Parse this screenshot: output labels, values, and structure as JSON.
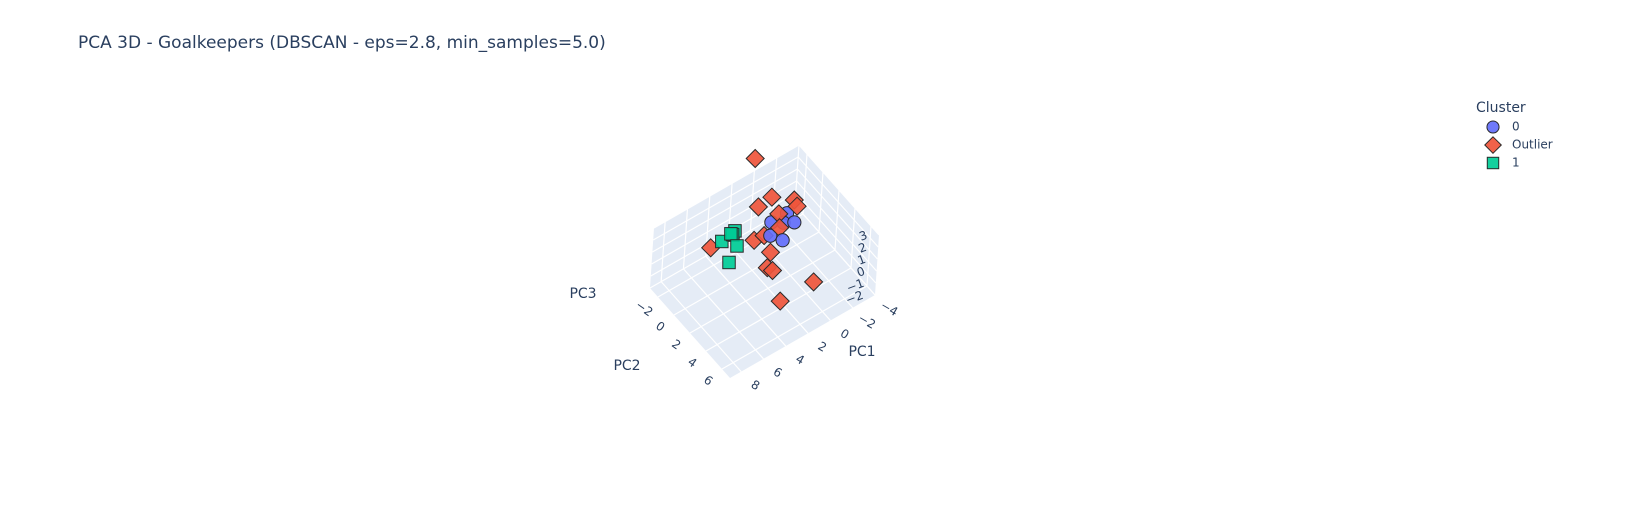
{
  "chart_data": {
    "type": "scatter",
    "projection": "3d",
    "title": "PCA 3D - Goalkeepers (DBSCAN - eps=2.8, min_samples=5.0)",
    "axes": {
      "x": {
        "label": "PC1",
        "ticks": [
          "8",
          "6",
          "4",
          "2",
          "0",
          "−2",
          "−4"
        ],
        "range": [
          -4,
          9
        ]
      },
      "y": {
        "label": "PC2",
        "ticks": [
          "−2",
          "0",
          "2",
          "4",
          "6"
        ],
        "range": [
          -3,
          7
        ]
      },
      "z": {
        "label": "PC3",
        "ticks": [
          "3",
          "2",
          "1",
          "0",
          "−1",
          "−2"
        ],
        "range": [
          -2,
          3
        ]
      }
    },
    "legend": {
      "title": "Cluster",
      "placement": "top-right",
      "entries": [
        {
          "name": "0",
          "symbol": "circle",
          "color": "#636efa"
        },
        {
          "name": "Outlier",
          "symbol": "diamond",
          "color": "#ef553b"
        },
        {
          "name": "1",
          "symbol": "square",
          "color": "#00cc96"
        }
      ]
    },
    "series": [
      {
        "name": "0",
        "symbol": "circle",
        "color": "#636efa",
        "points": [
          [
            0.5,
            0.0,
            1.2
          ],
          [
            1.0,
            0.6,
            0.8
          ],
          [
            0.0,
            0.8,
            1.5
          ],
          [
            0.3,
            1.2,
            0.5
          ],
          [
            -0.5,
            0.5,
            1.8
          ],
          [
            -1.0,
            0.8,
            1.0
          ]
        ]
      },
      {
        "name": "Outlier",
        "symbol": "diamond",
        "color": "#ef553b",
        "points": [
          [
            6.0,
            0.0,
            2.0
          ],
          [
            -1.0,
            -2.0,
            1.0
          ],
          [
            0.0,
            -3.0,
            4.0
          ],
          [
            1.0,
            -1.0,
            2.0
          ],
          [
            2.0,
            0.0,
            0.5
          ],
          [
            1.5,
            0.5,
            1.0
          ],
          [
            3.0,
            3.0,
            1.0
          ],
          [
            4.0,
            6.0,
            1.0
          ],
          [
            1.0,
            6.0,
            1.0
          ],
          [
            0.5,
            0.8,
            2.5
          ],
          [
            0.5,
            1.0,
            1.5
          ],
          [
            -1.0,
            1.0,
            2.5
          ],
          [
            -1.5,
            0.0,
            2.0
          ],
          [
            2.0,
            2.0,
            1.0
          ],
          [
            2.5,
            3.0,
            0.5
          ]
        ]
      },
      {
        "name": "1",
        "symbol": "square",
        "color": "#00cc96",
        "points": [
          [
            4.0,
            0.2,
            2.5
          ],
          [
            4.0,
            0.0,
            2.0
          ],
          [
            5.0,
            0.0,
            2.0
          ],
          [
            5.0,
            1.0,
            1.0
          ],
          [
            4.2,
            0.8,
            1.8
          ],
          [
            4.6,
            0.5,
            2.8
          ],
          [
            4.2,
            0.2,
            2.3
          ]
        ]
      }
    ]
  }
}
